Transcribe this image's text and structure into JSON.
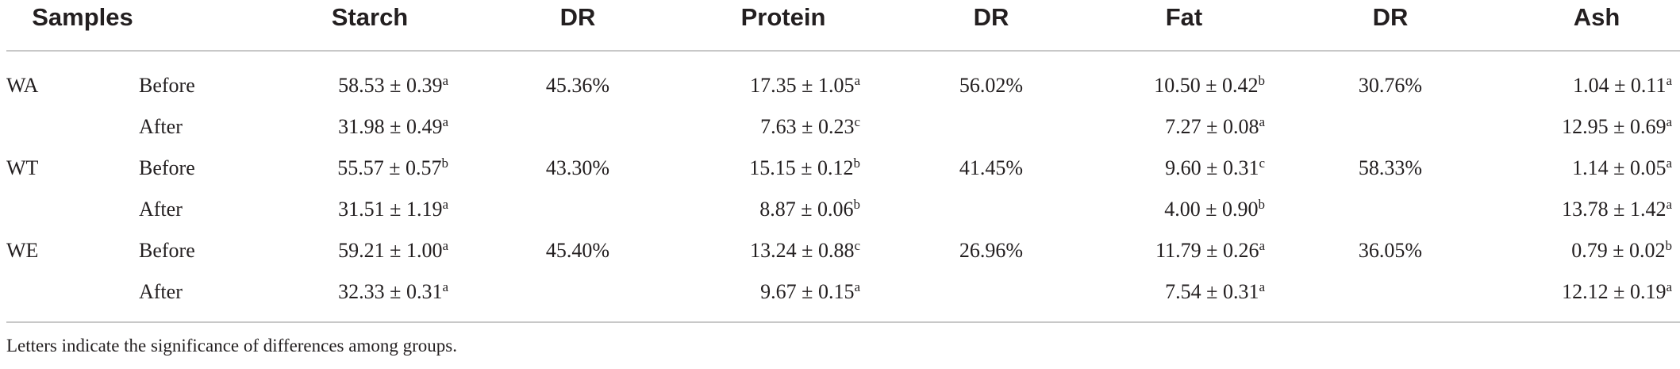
{
  "headers": [
    "Samples",
    "Starch",
    "DR",
    "Protein",
    "DR",
    "Fat",
    "DR",
    "Ash"
  ],
  "rows": [
    {
      "sample": "WA",
      "stage": "Before",
      "starch": "58.53 ± 0.39",
      "starch_sig": "a",
      "dr1": "45.36%",
      "protein": "17.35 ± 1.05",
      "protein_sig": "a",
      "dr2": "56.02%",
      "fat": "10.50 ± 0.42",
      "fat_sig": "b",
      "dr3": "30.76%",
      "ash": "1.04 ± 0.11",
      "ash_sig": "a"
    },
    {
      "sample": "",
      "stage": "After",
      "starch": "31.98 ± 0.49",
      "starch_sig": "a",
      "dr1": "",
      "protein": "7.63 ± 0.23",
      "protein_sig": "c",
      "dr2": "",
      "fat": "7.27 ± 0.08",
      "fat_sig": "a",
      "dr3": "",
      "ash": "12.95 ± 0.69",
      "ash_sig": "a"
    },
    {
      "sample": "WT",
      "stage": "Before",
      "starch": "55.57 ± 0.57",
      "starch_sig": "b",
      "dr1": "43.30%",
      "protein": "15.15 ± 0.12",
      "protein_sig": "b",
      "dr2": "41.45%",
      "fat": "9.60 ± 0.31",
      "fat_sig": "c",
      "dr3": "58.33%",
      "ash": "1.14 ± 0.05",
      "ash_sig": "a"
    },
    {
      "sample": "",
      "stage": "After",
      "starch": "31.51 ± 1.19",
      "starch_sig": "a",
      "dr1": "",
      "protein": "8.87 ± 0.06",
      "protein_sig": "b",
      "dr2": "",
      "fat": "4.00 ± 0.90",
      "fat_sig": "b",
      "dr3": "",
      "ash": "13.78 ± 1.42",
      "ash_sig": "a"
    },
    {
      "sample": "WE",
      "stage": "Before",
      "starch": "59.21 ± 1.00",
      "starch_sig": "a",
      "dr1": "45.40%",
      "protein": "13.24 ± 0.88",
      "protein_sig": "c",
      "dr2": "26.96%",
      "fat": "11.79 ± 0.26",
      "fat_sig": "a",
      "dr3": "36.05%",
      "ash": "0.79 ± 0.02",
      "ash_sig": "b"
    },
    {
      "sample": "",
      "stage": "After",
      "starch": "32.33 ± 0.31",
      "starch_sig": "a",
      "dr1": "",
      "protein": "9.67 ± 0.15",
      "protein_sig": "a",
      "dr2": "",
      "fat": "7.54 ± 0.31",
      "fat_sig": "a",
      "dr3": "",
      "ash": "12.12 ± 0.19",
      "ash_sig": "a"
    }
  ],
  "footnote": "Letters indicate the significance of differences among groups."
}
